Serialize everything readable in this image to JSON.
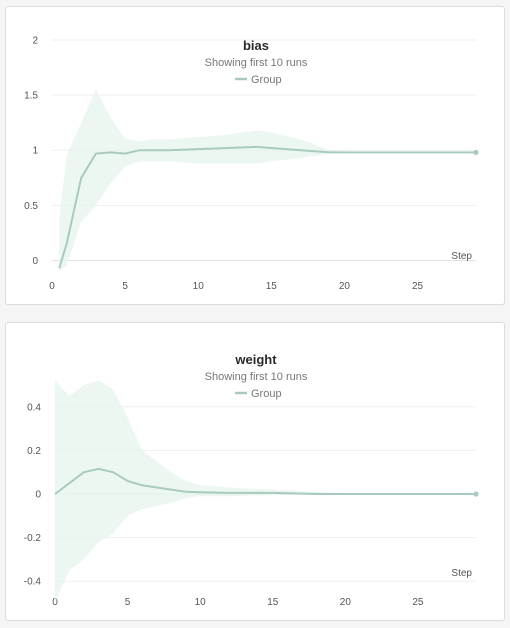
{
  "chart_data": [
    {
      "type": "line",
      "title": "bias",
      "subtitle": "Showing first 10 runs",
      "legend": "Group",
      "xlabel": "Step",
      "ylabel": "",
      "xlim": [
        0,
        29
      ],
      "ylim": [
        -0.15,
        2.1
      ],
      "xticks": [
        0,
        5,
        10,
        15,
        20,
        25
      ],
      "yticks": [
        0,
        0.5,
        1,
        1.5,
        2
      ],
      "ytick_labels": [
        "0",
        "0.5",
        "1",
        "1.5",
        "2"
      ],
      "color": "#a8cbbd",
      "band_color": "#e6f4ec",
      "series": [
        {
          "x": [
            0.5,
            1,
            2,
            3,
            4,
            5,
            6,
            7,
            8,
            10,
            12,
            14,
            15,
            17,
            19,
            20,
            22,
            24,
            26,
            28,
            29
          ],
          "values": [
            -0.07,
            0.15,
            0.75,
            0.97,
            0.98,
            0.97,
            1.0,
            1.0,
            1.0,
            1.01,
            1.02,
            1.03,
            1.02,
            1.0,
            0.98,
            0.98,
            0.98,
            0.98,
            0.98,
            0.98,
            0.98
          ],
          "lower": [
            -0.1,
            -0.05,
            0.35,
            0.5,
            0.7,
            0.85,
            0.9,
            0.9,
            0.9,
            0.88,
            0.88,
            0.88,
            0.9,
            0.93,
            0.97,
            0.98,
            0.98,
            0.98,
            0.98,
            0.98,
            0.98
          ],
          "upper": [
            0.4,
            0.95,
            1.25,
            1.55,
            1.3,
            1.1,
            1.08,
            1.1,
            1.1,
            1.12,
            1.14,
            1.18,
            1.16,
            1.1,
            1.0,
            0.99,
            0.98,
            0.98,
            0.98,
            0.98,
            0.98
          ]
        }
      ]
    },
    {
      "type": "line",
      "title": "weight",
      "subtitle": "Showing first 10 runs",
      "legend": "Group",
      "xlabel": "Step",
      "ylabel": "",
      "xlim": [
        0,
        29
      ],
      "ylim": [
        -0.5,
        0.5
      ],
      "xticks": [
        0,
        5,
        10,
        15,
        20,
        25
      ],
      "yticks": [
        -0.4,
        -0.2,
        0,
        0.2,
        0.4
      ],
      "ytick_labels": [
        "-0.4",
        "-0.2",
        "0",
        "0.2",
        "0.4"
      ],
      "color": "#a8cbbd",
      "band_color": "#e6f4ec",
      "series": [
        {
          "x": [
            0,
            1,
            2,
            3,
            4,
            5,
            6,
            8,
            9,
            10,
            12,
            15,
            18,
            20,
            25,
            29
          ],
          "values": [
            0.0,
            0.05,
            0.1,
            0.115,
            0.1,
            0.06,
            0.04,
            0.02,
            0.01,
            0.008,
            0.005,
            0.005,
            0.0,
            0.0,
            0.0,
            0.0
          ],
          "lower": [
            -0.5,
            -0.35,
            -0.3,
            -0.22,
            -0.18,
            -0.1,
            -0.07,
            -0.04,
            -0.02,
            -0.01,
            -0.01,
            -0.005,
            0.0,
            0.0,
            0.0,
            0.0
          ],
          "upper": [
            0.52,
            0.45,
            0.5,
            0.52,
            0.48,
            0.35,
            0.2,
            0.1,
            0.06,
            0.04,
            0.03,
            0.02,
            0.01,
            0.0,
            0.0,
            0.0
          ]
        }
      ]
    }
  ]
}
